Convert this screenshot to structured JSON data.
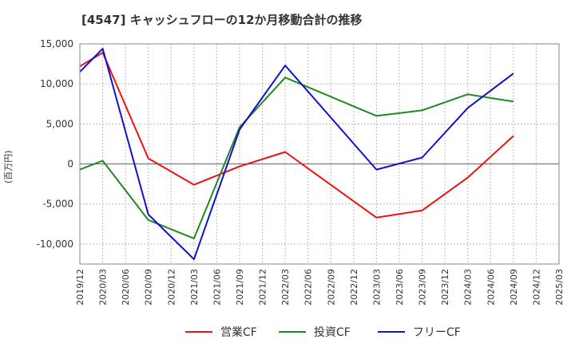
{
  "title": "[4547]  キャッシュフローの12か月移動合計の推移",
  "chart_data": {
    "type": "line",
    "title": "[4547]  キャッシュフローの12か月移動合計の推移",
    "ylabel": "(百万円)",
    "xlabel": "",
    "ylim": [
      -12500,
      15000
    ],
    "yticks": [
      15000,
      10000,
      5000,
      0,
      -5000,
      -10000
    ],
    "ytick_labels": [
      "15,000",
      "10,000",
      "5,000",
      "0",
      "-5,000",
      "-10,000"
    ],
    "categories": [
      "2019/12",
      "2020/03",
      "2020/06",
      "2020/09",
      "2020/12",
      "2021/03",
      "2021/06",
      "2021/09",
      "2021/12",
      "2022/03",
      "2022/06",
      "2022/09",
      "2022/12",
      "2023/03",
      "2023/06",
      "2023/09",
      "2023/12",
      "2024/03",
      "2024/06",
      "2024/09",
      "2024/12",
      "2025/03"
    ],
    "grid": true,
    "legend_position": "bottom",
    "series": [
      {
        "name": "営業CF",
        "color": "#ee1111",
        "values": [
          12200,
          13900,
          null,
          700,
          null,
          -2600,
          null,
          -300,
          null,
          1500,
          null,
          null,
          null,
          -6700,
          null,
          -5800,
          null,
          -1700,
          null,
          3500,
          null,
          null
        ]
      },
      {
        "name": "投資CF",
        "color": "#228822",
        "values": [
          -700,
          400,
          null,
          -7000,
          null,
          -9300,
          null,
          4600,
          null,
          10800,
          null,
          null,
          null,
          6000,
          null,
          6700,
          null,
          8700,
          null,
          7800,
          null,
          null
        ]
      },
      {
        "name": "フリーCF",
        "color": "#1111cc",
        "values": [
          11500,
          14400,
          null,
          -6300,
          null,
          -11900,
          null,
          4300,
          null,
          12300,
          null,
          null,
          null,
          -700,
          null,
          800,
          null,
          7000,
          null,
          11300,
          null,
          null
        ]
      }
    ]
  }
}
